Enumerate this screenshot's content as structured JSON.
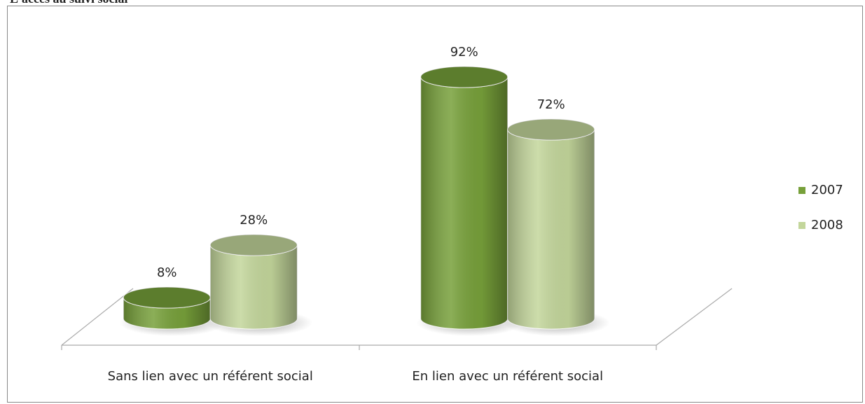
{
  "chart_data": {
    "type": "cylinder-bar",
    "title": "L'accès au suivi social",
    "categories": [
      "Sans lien avec un référent social",
      "En lien avec un référent social"
    ],
    "series": [
      {
        "name": "2007",
        "color": "#77a03a",
        "values": [
          8,
          92
        ],
        "value_labels": [
          "8%",
          "92%"
        ]
      },
      {
        "name": "2008",
        "color": "#c3d69b",
        "values": [
          28,
          72
        ],
        "value_labels": [
          "28%",
          "72%"
        ]
      }
    ],
    "legend": "right"
  }
}
